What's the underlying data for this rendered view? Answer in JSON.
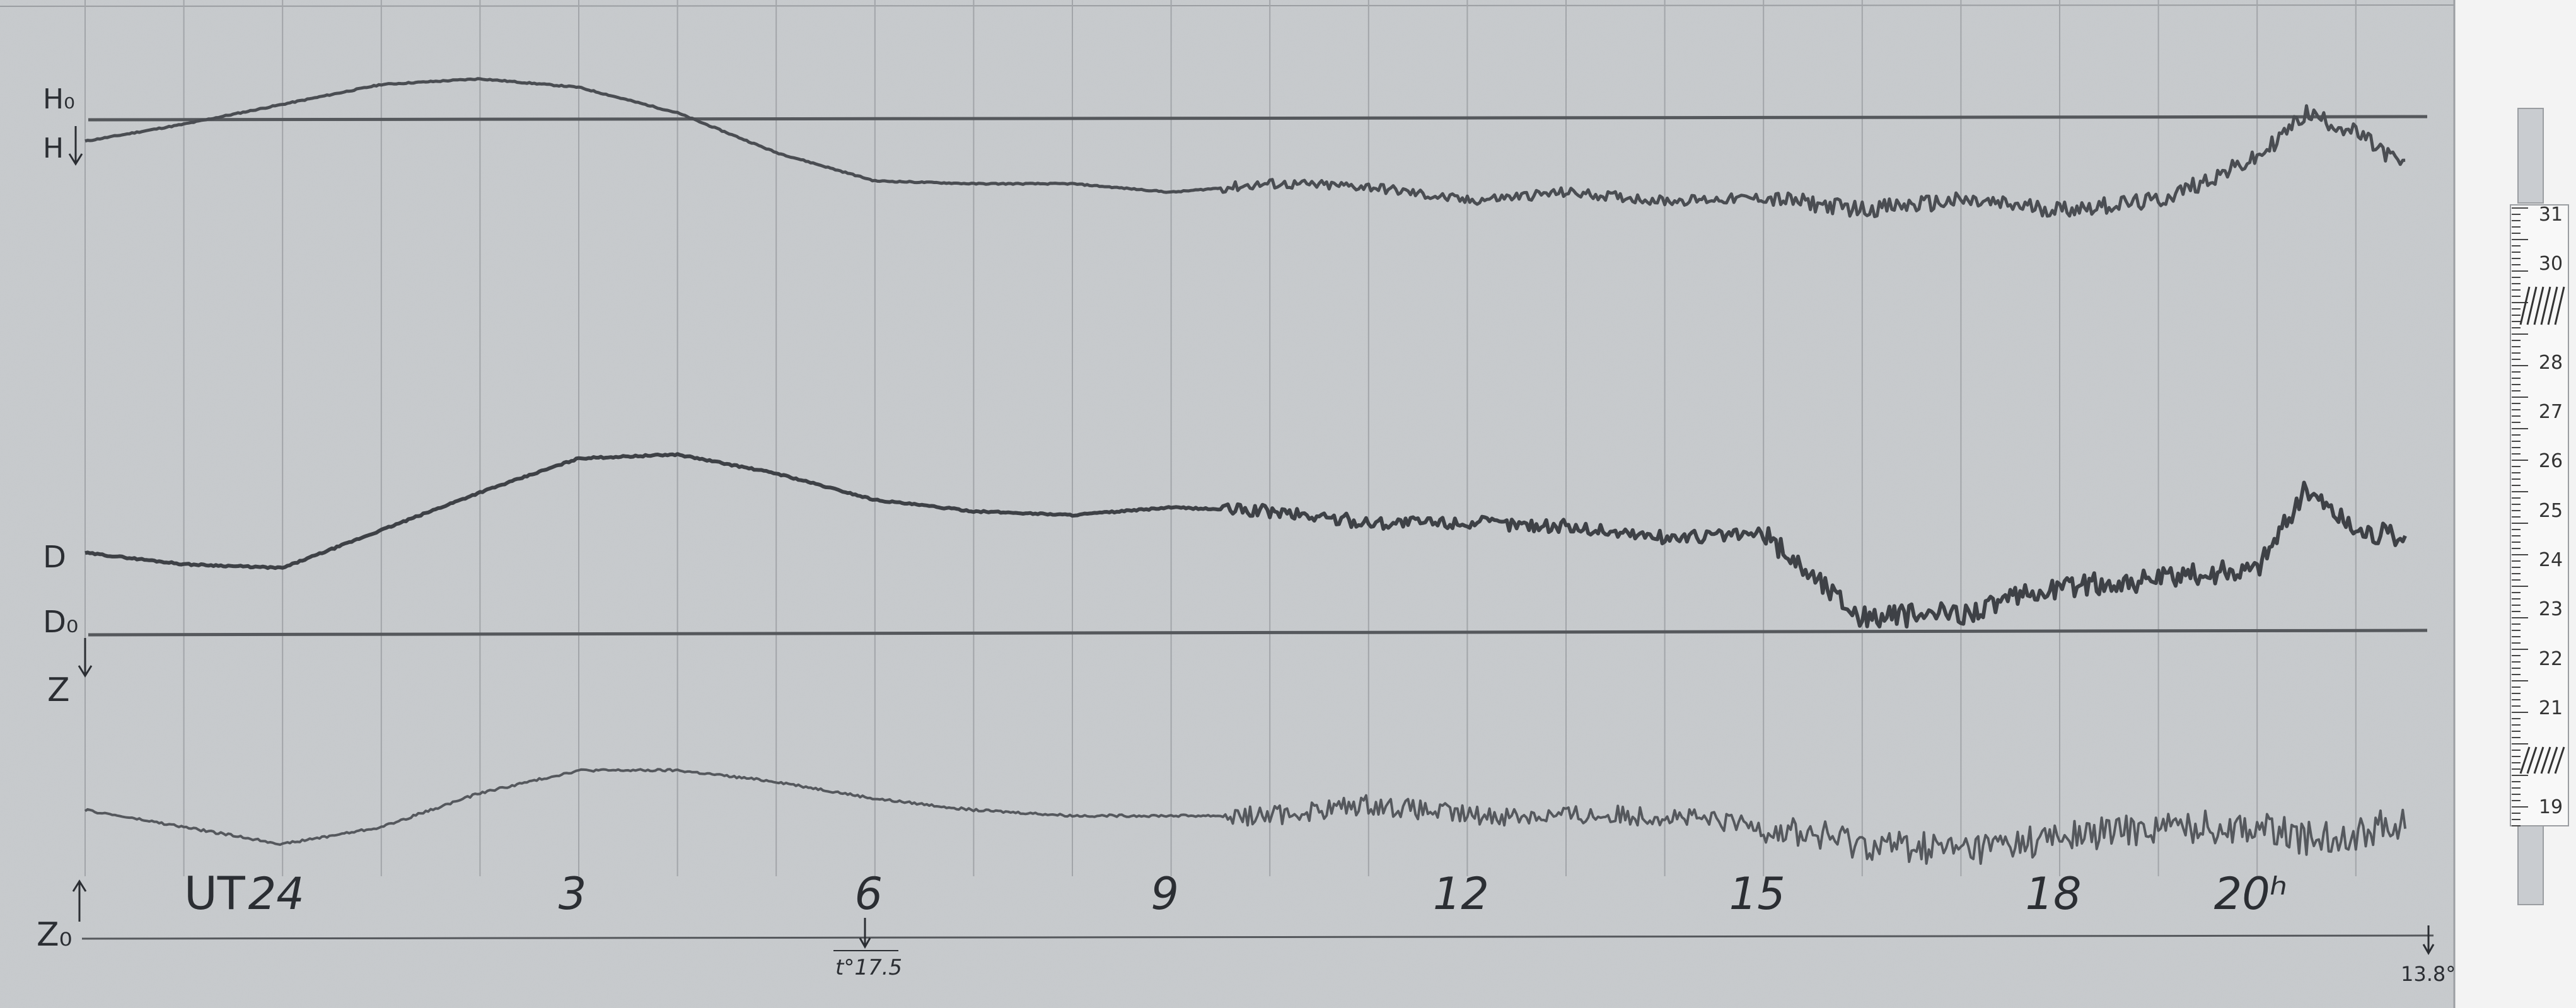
{
  "chart_data": {
    "type": "line",
    "x_unit": "UT hours",
    "xlim": [
      22,
      21.5
    ],
    "time_axis": {
      "prefix": "UT",
      "ticks": [
        {
          "hour": 24,
          "label": "24"
        },
        {
          "hour": 27,
          "label": "3"
        },
        {
          "hour": 30,
          "label": "6"
        },
        {
          "hour": 33,
          "label": "9"
        },
        {
          "hour": 36,
          "label": "12"
        },
        {
          "hour": 39,
          "label": "15"
        },
        {
          "hour": 42,
          "label": "18"
        },
        {
          "hour": 44,
          "label": "20ʰ"
        }
      ]
    },
    "baselines": {
      "H": {
        "label": "H₀",
        "arrow_label": "H"
      },
      "D": {
        "label": "D₀"
      },
      "Z": {
        "label": "Z₀"
      }
    },
    "series": [
      {
        "name": "H",
        "label": "H",
        "color": "#4a4d52",
        "x": [
          22.0,
          23.0,
          24.0,
          25.0,
          26.0,
          27.0,
          28.0,
          29.0,
          30.0,
          31.0,
          32.0,
          33.0,
          34.0,
          35.0,
          36.0,
          37.0,
          38.0,
          39.0,
          40.0,
          41.0,
          42.0,
          43.0,
          44.0,
          44.5,
          45.0,
          45.5
        ],
        "y": [
          -0.8,
          -0.2,
          0.5,
          1.2,
          1.4,
          1.1,
          0.2,
          -1.2,
          -2.2,
          -2.3,
          -2.3,
          -2.6,
          -2.3,
          -2.4,
          -2.9,
          -2.6,
          -2.9,
          -2.8,
          -3.2,
          -2.9,
          -3.2,
          -2.9,
          -1.4,
          0.2,
          -0.5,
          -1.7
        ]
      },
      {
        "name": "D",
        "label": "D",
        "color": "#3e4146",
        "x": [
          22.0,
          23.0,
          24.0,
          25.0,
          26.0,
          27.0,
          28.0,
          29.0,
          30.0,
          31.0,
          32.0,
          33.0,
          34.0,
          35.0,
          36.0,
          37.0,
          38.0,
          39.0,
          40.0,
          41.0,
          42.0,
          43.0,
          44.0,
          44.5,
          45.0,
          45.5
        ],
        "y": [
          2.1,
          1.8,
          1.7,
          2.7,
          3.7,
          4.6,
          4.7,
          4.2,
          3.5,
          3.2,
          3.1,
          3.3,
          3.2,
          2.9,
          2.9,
          2.8,
          2.5,
          2.6,
          0.4,
          0.5,
          1.2,
          1.4,
          1.7,
          3.8,
          2.7,
          2.5
        ]
      },
      {
        "name": "Z",
        "label": "Z",
        "color": "#55585d",
        "x": [
          22.0,
          23.0,
          24.0,
          25.0,
          26.0,
          27.0,
          28.0,
          29.0,
          30.0,
          31.0,
          32.0,
          33.0,
          34.0,
          35.0,
          36.0,
          37.0,
          38.0,
          39.0,
          40.0,
          41.0,
          42.0,
          43.0,
          44.0,
          44.5,
          45.0,
          45.5
        ],
        "y": [
          -0.5,
          -0.8,
          -1.1,
          -0.8,
          -0.2,
          0.2,
          0.2,
          0.0,
          -0.3,
          -0.5,
          -0.6,
          -0.6,
          -0.6,
          -0.4,
          -0.6,
          -0.6,
          -0.6,
          -0.8,
          -1.1,
          -1.2,
          -1.0,
          -0.8,
          -0.8,
          -1.0,
          -0.9,
          -0.7
        ]
      }
    ],
    "annotations": {
      "temp_start": {
        "text": "t°17.5"
      },
      "temp_end": {
        "text": "13.8°"
      }
    },
    "grid": true,
    "scale_bar": {
      "labels": [
        "31",
        "30",
        "28",
        "27",
        "26",
        "25",
        "24",
        "23",
        "22",
        "21",
        "19"
      ]
    }
  }
}
